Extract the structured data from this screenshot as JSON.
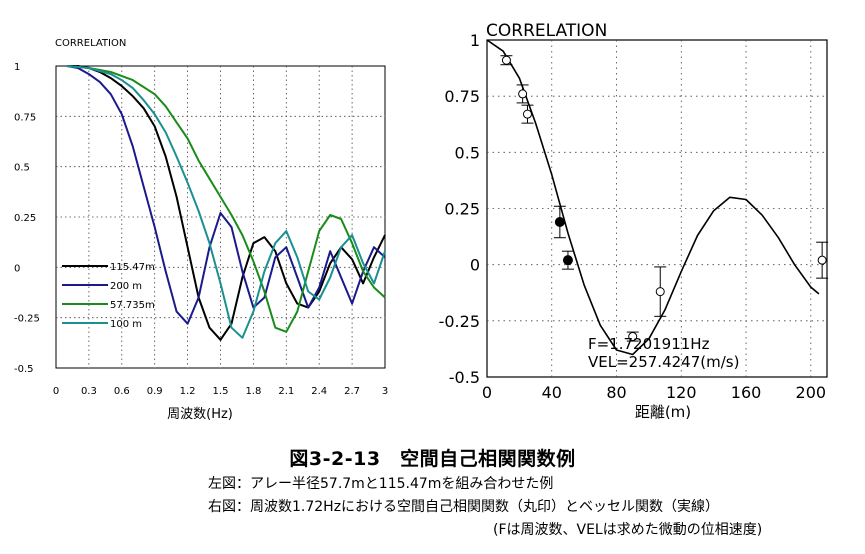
{
  "chart_data": [
    {
      "type": "line",
      "title": "CORRELATION",
      "xlabel": "周波数(Hz)",
      "ylabel": "",
      "xlim": [
        0,
        3
      ],
      "ylim": [
        -0.5,
        1
      ],
      "xticks": [
        "0",
        "0.3",
        "0.6",
        "0.9",
        "1.2",
        "1.5",
        "1.8",
        "2.1",
        "2.4",
        "2.7",
        "3"
      ],
      "yticks": [
        "1",
        "0.75",
        "0.5",
        "0.25",
        "0",
        "-0.25",
        "-0.5"
      ],
      "grid": true,
      "legend_position": "bottom-left",
      "series": [
        {
          "name": "115.47m",
          "color": "#000000",
          "points": [
            [
              0.1,
              1
            ],
            [
              0.2,
              1
            ],
            [
              0.3,
              0.99
            ],
            [
              0.4,
              0.97
            ],
            [
              0.5,
              0.94
            ],
            [
              0.6,
              0.9
            ],
            [
              0.7,
              0.85
            ],
            [
              0.8,
              0.79
            ],
            [
              0.9,
              0.7
            ],
            [
              1.0,
              0.55
            ],
            [
              1.1,
              0.35
            ],
            [
              1.2,
              0.1
            ],
            [
              1.3,
              -0.15
            ],
            [
              1.4,
              -0.3
            ],
            [
              1.5,
              -0.36
            ],
            [
              1.6,
              -0.28
            ],
            [
              1.7,
              -0.05
            ],
            [
              1.8,
              0.12
            ],
            [
              1.9,
              0.15
            ],
            [
              2.0,
              0.08
            ],
            [
              2.1,
              -0.08
            ],
            [
              2.2,
              -0.18
            ],
            [
              2.3,
              -0.2
            ],
            [
              2.4,
              -0.12
            ],
            [
              2.5,
              0.02
            ],
            [
              2.6,
              0.1
            ],
            [
              2.7,
              0.04
            ],
            [
              2.8,
              -0.08
            ],
            [
              2.9,
              0.05
            ],
            [
              3.0,
              0.16
            ]
          ]
        },
        {
          "name": "200 m",
          "color": "#1a1a8c",
          "points": [
            [
              0.1,
              1
            ],
            [
              0.2,
              0.99
            ],
            [
              0.3,
              0.96
            ],
            [
              0.4,
              0.92
            ],
            [
              0.5,
              0.86
            ],
            [
              0.6,
              0.76
            ],
            [
              0.7,
              0.6
            ],
            [
              0.8,
              0.4
            ],
            [
              0.9,
              0.2
            ],
            [
              1.0,
              -0.02
            ],
            [
              1.1,
              -0.22
            ],
            [
              1.2,
              -0.28
            ],
            [
              1.3,
              -0.15
            ],
            [
              1.4,
              0.1
            ],
            [
              1.5,
              0.27
            ],
            [
              1.6,
              0.2
            ],
            [
              1.7,
              -0.02
            ],
            [
              1.8,
              -0.2
            ],
            [
              1.9,
              -0.15
            ],
            [
              2.0,
              0.05
            ],
            [
              2.1,
              0.1
            ],
            [
              2.2,
              -0.05
            ],
            [
              2.3,
              -0.2
            ],
            [
              2.4,
              -0.1
            ],
            [
              2.5,
              0.08
            ],
            [
              2.6,
              -0.05
            ],
            [
              2.7,
              -0.18
            ],
            [
              2.8,
              -0.02
            ],
            [
              2.9,
              0.1
            ],
            [
              3.0,
              0.05
            ]
          ]
        },
        {
          "name": "57.735m",
          "color": "#1a8c1a",
          "points": [
            [
              0.1,
              1
            ],
            [
              0.3,
              0.99
            ],
            [
              0.5,
              0.97
            ],
            [
              0.7,
              0.93
            ],
            [
              0.9,
              0.86
            ],
            [
              1.0,
              0.8
            ],
            [
              1.1,
              0.72
            ],
            [
              1.2,
              0.64
            ],
            [
              1.3,
              0.53
            ],
            [
              1.4,
              0.44
            ],
            [
              1.5,
              0.35
            ],
            [
              1.6,
              0.26
            ],
            [
              1.7,
              0.16
            ],
            [
              1.8,
              0.03
            ],
            [
              1.9,
              -0.12
            ],
            [
              2.0,
              -0.3
            ],
            [
              2.1,
              -0.32
            ],
            [
              2.2,
              -0.22
            ],
            [
              2.3,
              -0.02
            ],
            [
              2.4,
              0.18
            ],
            [
              2.5,
              0.26
            ],
            [
              2.6,
              0.24
            ],
            [
              2.7,
              0.12
            ],
            [
              2.8,
              -0.02
            ],
            [
              2.9,
              -0.1
            ],
            [
              3.0,
              -0.15
            ]
          ]
        },
        {
          "name": "100 m",
          "color": "#1a9090",
          "points": [
            [
              0.1,
              1
            ],
            [
              0.3,
              0.99
            ],
            [
              0.5,
              0.96
            ],
            [
              0.6,
              0.93
            ],
            [
              0.7,
              0.89
            ],
            [
              0.8,
              0.83
            ],
            [
              0.9,
              0.76
            ],
            [
              1.0,
              0.67
            ],
            [
              1.1,
              0.55
            ],
            [
              1.2,
              0.42
            ],
            [
              1.3,
              0.28
            ],
            [
              1.4,
              0.12
            ],
            [
              1.5,
              -0.08
            ],
            [
              1.6,
              -0.3
            ],
            [
              1.7,
              -0.35
            ],
            [
              1.8,
              -0.22
            ],
            [
              1.9,
              -0.02
            ],
            [
              2.0,
              0.12
            ],
            [
              2.1,
              0.18
            ],
            [
              2.2,
              0.05
            ],
            [
              2.3,
              -0.12
            ],
            [
              2.4,
              -0.16
            ],
            [
              2.5,
              -0.05
            ],
            [
              2.6,
              0.1
            ],
            [
              2.7,
              0.16
            ],
            [
              2.8,
              0.02
            ],
            [
              2.9,
              -0.08
            ],
            [
              3.0,
              0.08
            ]
          ]
        }
      ]
    },
    {
      "type": "scatter",
      "title": "CORRELATION",
      "xlabel": "距離(m)",
      "ylabel": "",
      "xlim": [
        0,
        210
      ],
      "ylim": [
        -0.5,
        1
      ],
      "xticks": [
        "0",
        "40",
        "80",
        "120",
        "160",
        "200"
      ],
      "yticks": [
        "1",
        "0.75",
        "0.5",
        "0.25",
        "0",
        "-0.25",
        "-0.5"
      ],
      "grid": true,
      "annotations": [
        "F=1.7201911Hz",
        "VEL=257.4247(m/s)"
      ],
      "bessel_curve": [
        [
          0,
          1
        ],
        [
          10,
          0.95
        ],
        [
          20,
          0.83
        ],
        [
          30,
          0.63
        ],
        [
          40,
          0.4
        ],
        [
          50,
          0.14
        ],
        [
          60,
          -0.09
        ],
        [
          70,
          -0.27
        ],
        [
          80,
          -0.38
        ],
        [
          90,
          -0.4
        ],
        [
          100,
          -0.33
        ],
        [
          110,
          -0.2
        ],
        [
          120,
          -0.03
        ],
        [
          130,
          0.13
        ],
        [
          140,
          0.24
        ],
        [
          150,
          0.3
        ],
        [
          160,
          0.29
        ],
        [
          170,
          0.22
        ],
        [
          180,
          0.12
        ],
        [
          190,
          0.0
        ],
        [
          200,
          -0.1
        ],
        [
          205,
          -0.13
        ]
      ],
      "observed": [
        {
          "x": 12,
          "y": 0.91,
          "err": 0.02,
          "filled": false
        },
        {
          "x": 22,
          "y": 0.76,
          "err": 0.04,
          "filled": false
        },
        {
          "x": 25,
          "y": 0.67,
          "err": 0.04,
          "filled": false
        },
        {
          "x": 45,
          "y": 0.19,
          "err": 0.07,
          "filled": true
        },
        {
          "x": 50,
          "y": 0.02,
          "err": 0.04,
          "filled": true
        },
        {
          "x": 90,
          "y": -0.32,
          "err": 0.02,
          "filled": false
        },
        {
          "x": 107,
          "y": -0.12,
          "err": 0.11,
          "filled": false
        },
        {
          "x": 207,
          "y": 0.02,
          "err": 0.08,
          "filled": false
        }
      ]
    }
  ],
  "caption": {
    "title": "図3-2-13　空間自己相関関数例",
    "line1": "左図：アレー半径57.7mと115.47mを組み合わせた例",
    "line2": "右図：周波数1.72Hzにおける空間自己相関関数（丸印）とベッセル関数（実線）",
    "line3": "(Fは周波数、VELは求めた微動の位相速度)"
  }
}
